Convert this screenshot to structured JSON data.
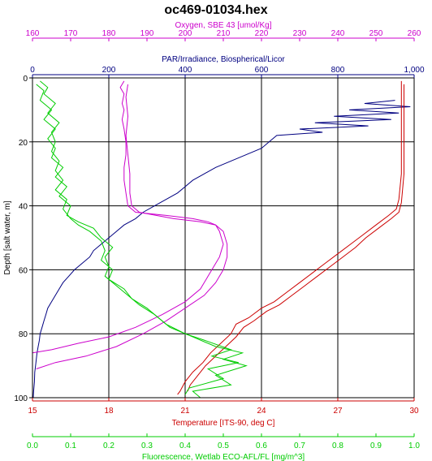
{
  "chart_data": {
    "type": "line",
    "title": "oc469-01034.hex",
    "depth_axis": {
      "label": "Depth [salt water, m]",
      "range": [
        0,
        100
      ],
      "ticks": [
        "0",
        "20",
        "40",
        "60",
        "80",
        "100"
      ],
      "inverted": true
    },
    "grid": true,
    "x_axes": [
      {
        "id": "oxygen",
        "label": "Oxygen, SBE 43 [umol/Kg]",
        "color": "#cc00cc",
        "position": "top-outer",
        "range": [
          160,
          260
        ],
        "ticks": [
          "160",
          "170",
          "180",
          "190",
          "200",
          "210",
          "220",
          "230",
          "240",
          "250",
          "260"
        ]
      },
      {
        "id": "par",
        "label": "PAR/Irradiance, Biospherical/Licor",
        "color": "#000080",
        "position": "top-inner",
        "range": [
          0,
          1000
        ],
        "ticks": [
          "0",
          "200",
          "400",
          "600",
          "800",
          "1,000"
        ]
      },
      {
        "id": "temperature",
        "label": "Temperature [ITS-90, deg C]",
        "color": "#cc0000",
        "position": "bottom-inner",
        "range": [
          15,
          30
        ],
        "ticks": [
          "15",
          "18",
          "21",
          "24",
          "27",
          "30"
        ]
      },
      {
        "id": "fluorescence",
        "label": "Fluorescence, Wetlab ECO-AFL/FL [mg/m^3]",
        "color": "#00cc00",
        "position": "bottom-outer",
        "range": [
          0,
          1
        ],
        "ticks": [
          "0.0",
          "0.1",
          "0.2",
          "0.3",
          "0.4",
          "0.5",
          "0.6",
          "0.7",
          "0.8",
          "0.9",
          "1.0"
        ]
      }
    ],
    "series": [
      {
        "axis": "par",
        "color": "#000080",
        "points": [
          [
            950,
            7
          ],
          [
            870,
            8
          ],
          [
            990,
            9
          ],
          [
            830,
            10
          ],
          [
            960,
            11
          ],
          [
            790,
            12
          ],
          [
            940,
            13
          ],
          [
            740,
            14
          ],
          [
            880,
            15
          ],
          [
            700,
            16
          ],
          [
            760,
            17
          ],
          [
            640,
            18
          ],
          [
            620,
            20
          ],
          [
            600,
            22
          ],
          [
            560,
            24
          ],
          [
            520,
            26
          ],
          [
            480,
            28
          ],
          [
            450,
            30
          ],
          [
            420,
            32
          ],
          [
            400,
            34
          ],
          [
            380,
            36
          ],
          [
            350,
            38
          ],
          [
            320,
            40
          ],
          [
            290,
            42
          ],
          [
            270,
            44
          ],
          [
            240,
            46
          ],
          [
            220,
            48
          ],
          [
            200,
            50
          ],
          [
            180,
            52
          ],
          [
            160,
            54
          ],
          [
            150,
            56
          ],
          [
            130,
            58
          ],
          [
            110,
            60
          ],
          [
            95,
            62
          ],
          [
            80,
            64
          ],
          [
            70,
            66
          ],
          [
            60,
            68
          ],
          [
            50,
            70
          ],
          [
            40,
            72
          ],
          [
            35,
            74
          ],
          [
            30,
            76
          ],
          [
            25,
            78
          ],
          [
            20,
            80
          ],
          [
            18,
            82
          ],
          [
            15,
            84
          ],
          [
            12,
            86
          ],
          [
            10,
            88
          ],
          [
            8,
            90
          ],
          [
            6,
            92
          ],
          [
            5,
            95
          ],
          [
            3,
            98
          ],
          [
            2,
            100
          ]
        ]
      },
      {
        "axis": "oxygen",
        "color": "#cc00cc",
        "points": [
          [
            184,
            1
          ],
          [
            183,
            3
          ],
          [
            184,
            5
          ],
          [
            183.5,
            8
          ],
          [
            184,
            10
          ],
          [
            183.5,
            13
          ],
          [
            184,
            16
          ],
          [
            184.5,
            20
          ],
          [
            184.5,
            24
          ],
          [
            184,
            28
          ],
          [
            184,
            32
          ],
          [
            184.5,
            36
          ],
          [
            185,
            40
          ],
          [
            187,
            42
          ],
          [
            195,
            43
          ],
          [
            202,
            44
          ],
          [
            206,
            45
          ],
          [
            208,
            46
          ],
          [
            209,
            48
          ],
          [
            209.5,
            50
          ],
          [
            210,
            52
          ],
          [
            209.5,
            54
          ],
          [
            209,
            56
          ],
          [
            208,
            58
          ],
          [
            206,
            62
          ],
          [
            204,
            66
          ],
          [
            200,
            70
          ],
          [
            194,
            74
          ],
          [
            187,
            78
          ],
          [
            180,
            81
          ],
          [
            172,
            83
          ],
          [
            165,
            85
          ],
          [
            160,
            86
          ]
        ]
      },
      {
        "axis": "oxygen",
        "color": "#cc00cc",
        "points": [
          [
            185,
            2
          ],
          [
            184.5,
            6
          ],
          [
            185,
            12
          ],
          [
            184.5,
            18
          ],
          [
            185,
            24
          ],
          [
            185.5,
            30
          ],
          [
            185.5,
            36
          ],
          [
            186,
            40
          ],
          [
            188,
            42
          ],
          [
            197,
            44
          ],
          [
            204,
            45
          ],
          [
            208,
            46
          ],
          [
            210,
            48
          ],
          [
            211,
            52
          ],
          [
            211,
            56
          ],
          [
            210,
            60
          ],
          [
            208,
            64
          ],
          [
            205,
            68
          ],
          [
            200,
            72
          ],
          [
            195,
            76
          ],
          [
            189,
            80
          ],
          [
            182,
            84
          ],
          [
            174,
            87
          ],
          [
            166,
            89
          ],
          [
            161,
            91
          ]
        ]
      },
      {
        "axis": "temperature",
        "color": "#cc0000",
        "points": [
          [
            29.5,
            1
          ],
          [
            29.5,
            10
          ],
          [
            29.5,
            20
          ],
          [
            29.5,
            30
          ],
          [
            29.4,
            38
          ],
          [
            29.3,
            41
          ],
          [
            29,
            43
          ],
          [
            28.5,
            46
          ],
          [
            28,
            49
          ],
          [
            27.5,
            52
          ],
          [
            27,
            55
          ],
          [
            26.5,
            58
          ],
          [
            26,
            61
          ],
          [
            25.5,
            64
          ],
          [
            25,
            67
          ],
          [
            24.5,
            70
          ],
          [
            24,
            72
          ],
          [
            23.5,
            75
          ],
          [
            23,
            77
          ],
          [
            22.8,
            80
          ],
          [
            22.4,
            83
          ],
          [
            22,
            86
          ],
          [
            21.7,
            89
          ],
          [
            21.3,
            92
          ],
          [
            21,
            95
          ],
          [
            20.8,
            98
          ],
          [
            20.7,
            99
          ]
        ]
      },
      {
        "axis": "temperature",
        "color": "#cc0000",
        "points": [
          [
            29.6,
            2
          ],
          [
            29.6,
            15
          ],
          [
            29.6,
            30
          ],
          [
            29.5,
            39
          ],
          [
            29.4,
            42
          ],
          [
            29.1,
            44
          ],
          [
            28.6,
            47
          ],
          [
            28.1,
            50
          ],
          [
            27.7,
            53
          ],
          [
            27.2,
            56
          ],
          [
            26.7,
            59
          ],
          [
            26.2,
            62
          ],
          [
            25.7,
            65
          ],
          [
            25.2,
            68
          ],
          [
            24.7,
            71
          ],
          [
            24.2,
            73
          ],
          [
            23.7,
            76
          ],
          [
            23.3,
            78
          ],
          [
            23,
            81
          ],
          [
            22.6,
            84
          ],
          [
            22.2,
            87
          ],
          [
            21.8,
            90
          ],
          [
            21.5,
            93
          ],
          [
            21.2,
            96
          ],
          [
            21.1,
            98
          ]
        ]
      },
      {
        "axis": "fluorescence",
        "color": "#00cc00",
        "points": [
          [
            0.02,
            1
          ],
          [
            0.04,
            3
          ],
          [
            0.03,
            5
          ],
          [
            0.06,
            8
          ],
          [
            0.04,
            11
          ],
          [
            0.07,
            14
          ],
          [
            0.05,
            17
          ],
          [
            0.06,
            20
          ],
          [
            0.05,
            23
          ],
          [
            0.07,
            26
          ],
          [
            0.06,
            29
          ],
          [
            0.08,
            32
          ],
          [
            0.06,
            35
          ],
          [
            0.09,
            38
          ],
          [
            0.08,
            41
          ],
          [
            0.1,
            44
          ],
          [
            0.12,
            46
          ],
          [
            0.15,
            48
          ],
          [
            0.18,
            51
          ],
          [
            0.19,
            54
          ],
          [
            0.18,
            57
          ],
          [
            0.21,
            60
          ],
          [
            0.2,
            63
          ],
          [
            0.24,
            66
          ],
          [
            0.26,
            69
          ],
          [
            0.3,
            72
          ],
          [
            0.33,
            75
          ],
          [
            0.36,
            78
          ],
          [
            0.42,
            81
          ],
          [
            0.48,
            84
          ],
          [
            0.55,
            86
          ],
          [
            0.5,
            88
          ],
          [
            0.56,
            90
          ],
          [
            0.48,
            93
          ],
          [
            0.52,
            96
          ],
          [
            0.42,
            98
          ],
          [
            0.44,
            100
          ]
        ]
      },
      {
        "axis": "fluorescence",
        "color": "#00cc00",
        "points": [
          [
            0.01,
            2
          ],
          [
            0.03,
            4
          ],
          [
            0.02,
            7
          ],
          [
            0.05,
            10
          ],
          [
            0.03,
            13
          ],
          [
            0.06,
            16
          ],
          [
            0.04,
            19
          ],
          [
            0.06,
            22
          ],
          [
            0.05,
            25
          ],
          [
            0.08,
            28
          ],
          [
            0.06,
            31
          ],
          [
            0.09,
            34
          ],
          [
            0.07,
            37
          ],
          [
            0.1,
            40
          ],
          [
            0.09,
            43
          ],
          [
            0.12,
            45
          ],
          [
            0.16,
            47
          ],
          [
            0.18,
            50
          ],
          [
            0.21,
            53
          ],
          [
            0.19,
            56
          ],
          [
            0.2,
            59
          ],
          [
            0.19,
            62
          ],
          [
            0.22,
            65
          ],
          [
            0.25,
            68
          ],
          [
            0.28,
            71
          ],
          [
            0.32,
            74
          ],
          [
            0.35,
            77
          ],
          [
            0.4,
            80
          ],
          [
            0.45,
            82
          ],
          [
            0.52,
            85
          ],
          [
            0.47,
            87
          ],
          [
            0.54,
            89
          ],
          [
            0.46,
            91
          ],
          [
            0.5,
            94
          ],
          [
            0.41,
            97
          ],
          [
            0.4,
            99
          ]
        ]
      }
    ]
  }
}
